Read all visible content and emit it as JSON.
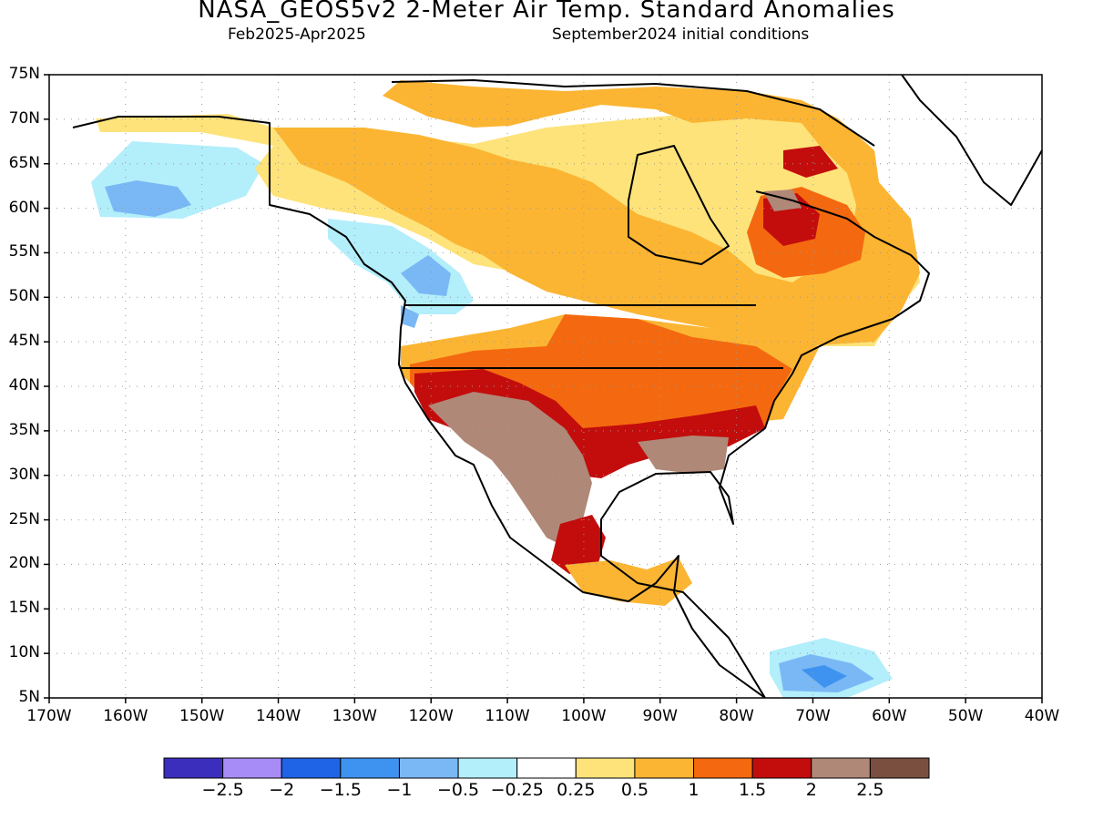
{
  "title": "NASA_GEOS5v2 2-Meter Air Temp. Standard Anomalies",
  "subtitle_left": "Feb2025-Apr2025",
  "subtitle_right": "September2024 initial conditions",
  "lat_labels": [
    "75N",
    "70N",
    "65N",
    "60N",
    "55N",
    "50N",
    "45N",
    "40N",
    "35N",
    "30N",
    "25N",
    "20N",
    "15N",
    "10N",
    "5N"
  ],
  "lon_labels": [
    "170W",
    "160W",
    "150W",
    "140W",
    "130W",
    "120W",
    "110W",
    "100W",
    "90W",
    "80W",
    "70W",
    "60W",
    "50W",
    "40W"
  ],
  "colorbar": {
    "colors": [
      "#3b2ebd",
      "#a78cf7",
      "#1f63e6",
      "#3f93f0",
      "#7ab8f5",
      "#b3eefb",
      "#ffffff",
      "#fde37a",
      "#fbb533",
      "#f4690f",
      "#c30d0d",
      "#b08878",
      "#7a4f40"
    ],
    "labels": [
      "-2.5",
      "-2",
      "-1.5",
      "-1",
      "-0.5",
      "-0.25",
      "0.25",
      "0.5",
      "1",
      "1.5",
      "2",
      "2.5"
    ]
  },
  "chart_data": {
    "type": "heatmap",
    "variable": "2-Meter Air Temp. Standard Anomalies",
    "period": "Feb2025-Apr2025",
    "initial_conditions": "September2024",
    "xlim": [
      -170,
      -40
    ],
    "ylim": [
      5,
      75
    ],
    "grid": true,
    "levels": [
      -2.5,
      -2,
      -1.5,
      -1,
      -0.5,
      -0.25,
      0.25,
      0.5,
      1,
      1.5,
      2,
      2.5
    ],
    "regions": [
      {
        "region": "Southwest US / Northern Mexico",
        "anomaly_range": ">2"
      },
      {
        "region": "Southeast US",
        "anomaly_range": "2 to 2.5"
      },
      {
        "region": "Central & Eastern US",
        "anomaly_range": "1 to 2"
      },
      {
        "region": "Northern Quebec",
        "anomaly_range": "1.5 to 2.5"
      },
      {
        "region": "Canadian Arctic",
        "anomaly_range": "0.25 to 1"
      },
      {
        "region": "Southern Alaska",
        "anomaly_range": "-1.5 to -0.25"
      },
      {
        "region": "British Columbia / Pacific Northwest",
        "anomaly_range": "-1 to -0.25"
      },
      {
        "region": "Northern South America",
        "anomaly_range": "-1.5 to -0.25"
      }
    ]
  }
}
